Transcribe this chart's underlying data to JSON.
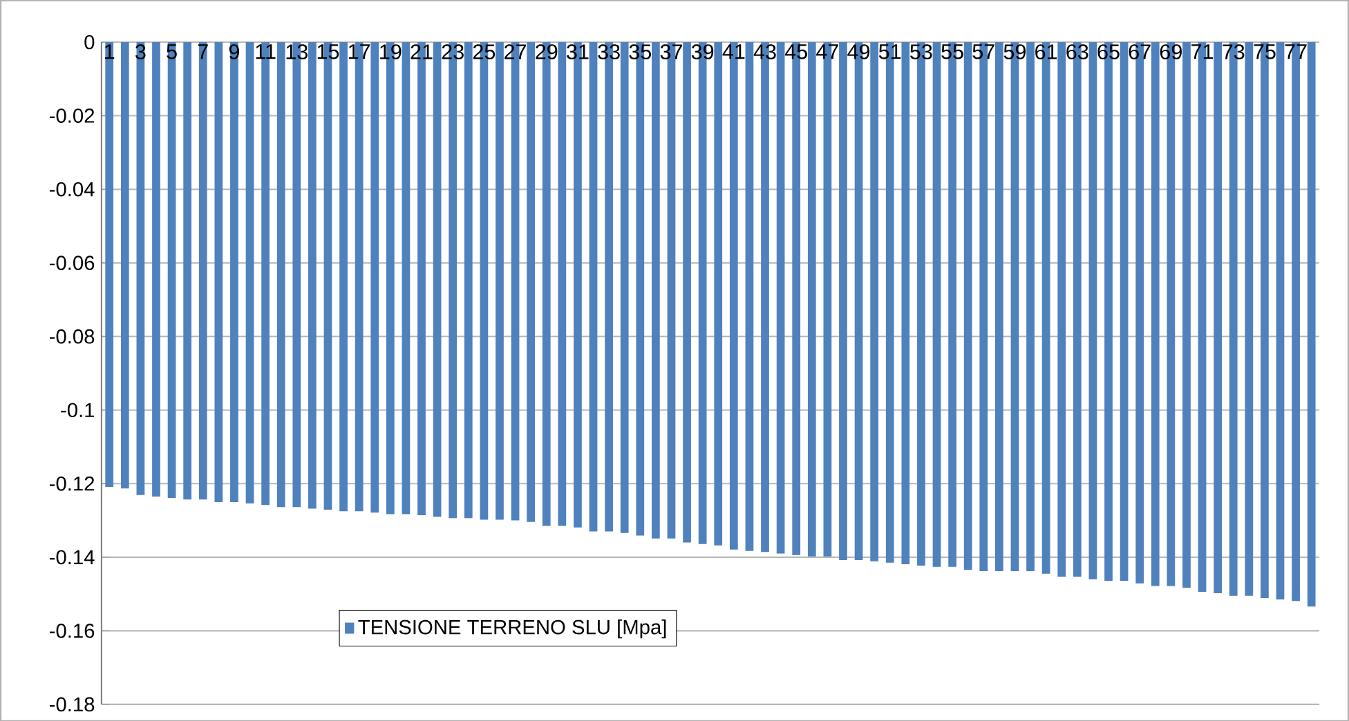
{
  "chart_data": {
    "type": "bar",
    "categories": [
      "1",
      null,
      "3",
      null,
      "5",
      null,
      "7",
      null,
      "9",
      null,
      "11",
      null,
      "13",
      null,
      "15",
      null,
      "17",
      null,
      "19",
      null,
      "21",
      null,
      "23",
      null,
      "25",
      null,
      "27",
      null,
      "29",
      null,
      "31",
      null,
      "33",
      null,
      "35",
      null,
      "37",
      null,
      "39",
      null,
      "41",
      null,
      "43",
      null,
      "45",
      null,
      "47",
      null,
      "49",
      null,
      "51",
      null,
      "53",
      null,
      "55",
      null,
      "57",
      null,
      "59",
      null,
      "61",
      null,
      "63",
      null,
      "65",
      null,
      "67",
      null,
      "69",
      null,
      "71",
      null,
      "73",
      null,
      "75",
      null,
      "77",
      null
    ],
    "series": [
      {
        "name": "TENSIONE TERRENO SLU [Mpa]",
        "color": "#4f81bd",
        "values": [
          -0.1209,
          -0.1213,
          -0.1231,
          -0.1235,
          -0.1239,
          -0.1243,
          -0.1243,
          -0.125,
          -0.125,
          -0.1254,
          -0.1258,
          -0.1264,
          -0.1264,
          -0.1268,
          -0.1271,
          -0.1275,
          -0.1275,
          -0.1279,
          -0.1283,
          -0.1283,
          -0.1286,
          -0.129,
          -0.1294,
          -0.1294,
          -0.1298,
          -0.1298,
          -0.13,
          -0.1304,
          -0.1315,
          -0.1315,
          -0.1319,
          -0.133,
          -0.133,
          -0.1334,
          -0.1341,
          -0.1349,
          -0.1349,
          -0.136,
          -0.1364,
          -0.1368,
          -0.1379,
          -0.1383,
          -0.1386,
          -0.139,
          -0.1394,
          -0.1398,
          -0.1398,
          -0.1408,
          -0.1408,
          -0.1411,
          -0.1415,
          -0.1419,
          -0.1423,
          -0.1426,
          -0.1426,
          -0.1434,
          -0.1438,
          -0.1438,
          -0.1438,
          -0.1438,
          -0.1445,
          -0.1453,
          -0.1453,
          -0.146,
          -0.1464,
          -0.1464,
          -0.1471,
          -0.1478,
          -0.1478,
          -0.1483,
          -0.1494,
          -0.1498,
          -0.1505,
          -0.1505,
          -0.1511,
          -0.1515,
          -0.1519,
          -0.1534
        ]
      }
    ],
    "ylim": [
      -0.18,
      0
    ],
    "yticks": [
      -0.18,
      -0.16,
      -0.14,
      -0.12,
      -0.1,
      -0.08,
      -0.06,
      -0.04,
      -0.02,
      0
    ],
    "grid": "y",
    "legend": "bottom left"
  }
}
